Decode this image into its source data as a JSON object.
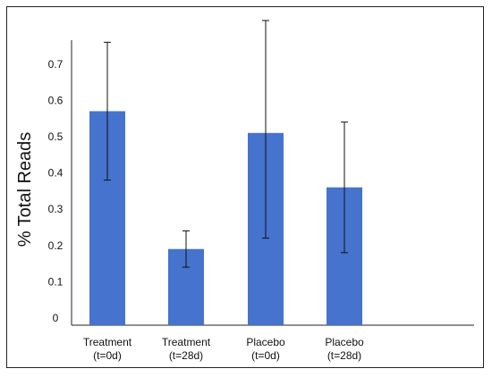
{
  "chart_data": {
    "type": "bar",
    "title": "",
    "xlabel": "",
    "ylabel": "% Total Reads",
    "ylim": [
      0,
      0.8
    ],
    "yticks": [
      "0",
      "0.1",
      "0.2",
      "0.3",
      "0.4",
      "0.5",
      "0.6",
      "0.7"
    ],
    "grid": false,
    "categories": [
      [
        "Treatment",
        "(t=0d)"
      ],
      [
        "Treatment",
        "(t=28d)"
      ],
      [
        "Placebo",
        "(t=0d)"
      ],
      [
        "Placebo",
        "(t=28d)"
      ]
    ],
    "values": [
      0.59,
      0.21,
      0.53,
      0.38
    ],
    "error_low": [
      0.4,
      0.16,
      0.24,
      0.2
    ],
    "error_high": [
      0.78,
      0.26,
      0.84,
      0.56
    ],
    "bar_color": "#4573ce"
  }
}
